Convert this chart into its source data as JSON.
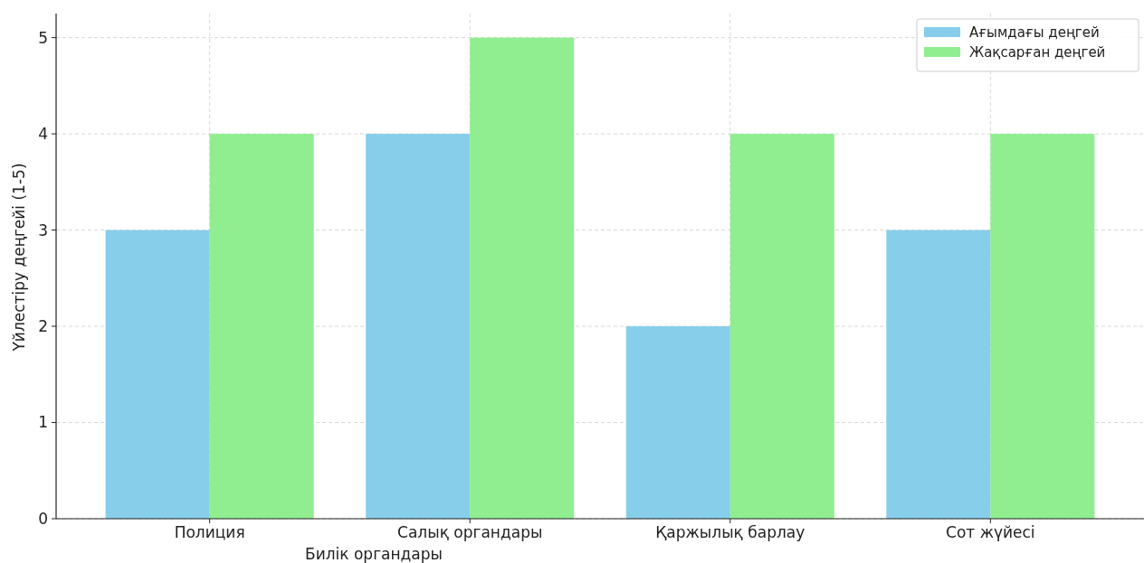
{
  "chart_data": {
    "type": "bar",
    "xlabel": "Билік органдары",
    "ylabel": "Үйлестіру деңгейі (1-5)",
    "categories": [
      "Полиция",
      "Салық органдары",
      "Қаржылық барлау",
      "Сот жүйесі"
    ],
    "series": [
      {
        "name": "Ағымдағы деңгей",
        "color": "#87ceeb",
        "values": [
          3,
          4,
          2,
          3
        ]
      },
      {
        "name": "Жақсарған деңгей",
        "color": "#90ee90",
        "values": [
          4,
          5,
          4,
          4
        ]
      }
    ],
    "ylim": [
      0,
      5.25
    ],
    "yticks": [
      0,
      1,
      2,
      3,
      4,
      5
    ],
    "grid": true,
    "legend": "top right"
  }
}
